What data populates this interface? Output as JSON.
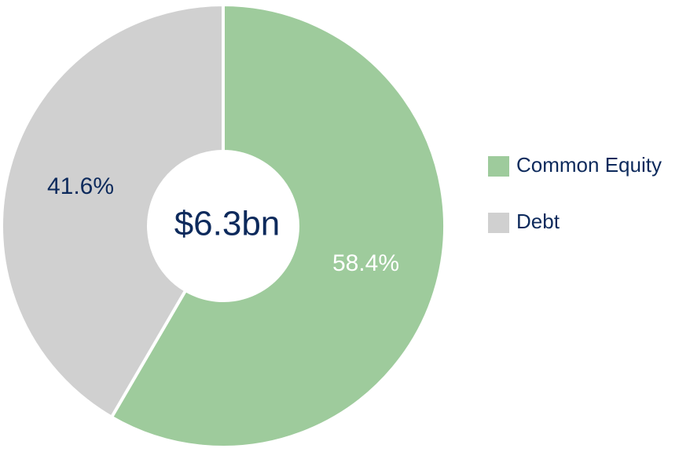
{
  "chart_data": {
    "type": "pie",
    "categories": [
      "Common Equity",
      "Debt"
    ],
    "values": [
      58.4,
      41.6
    ],
    "value_labels": [
      "58.4%",
      "41.6%"
    ],
    "colors": [
      "#9ecb9c",
      "#d0d0d0"
    ],
    "center_label": "$6.3bn"
  }
}
